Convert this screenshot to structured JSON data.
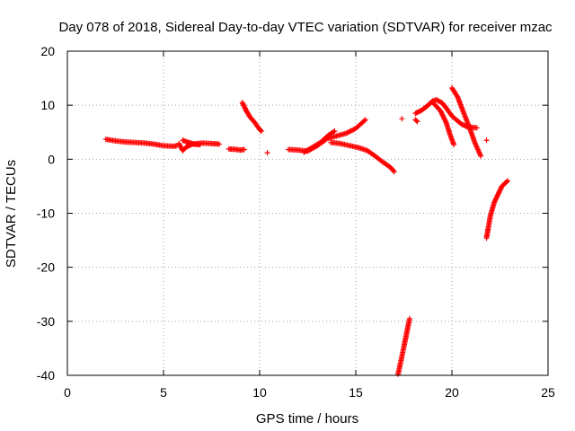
{
  "chart_data": {
    "type": "scatter",
    "title": "Day 078 of 2018, Sidereal Day-to-day VTEC variation (SDTVAR) for receiver mzac",
    "xlabel": "GPS time / hours",
    "ylabel": "SDTVAR / TECUs",
    "xlim": [
      0,
      25
    ],
    "ylim": [
      -40,
      20
    ],
    "xticks": [
      0,
      5,
      10,
      15,
      20,
      25
    ],
    "yticks": [
      -40,
      -30,
      -20,
      -10,
      0,
      10,
      20
    ],
    "xtick_labels": [
      "0",
      "5",
      "10",
      "15",
      "20",
      "25"
    ],
    "ytick_labels": [
      "-40",
      "-30",
      "-20",
      "-10",
      "0",
      "10",
      "20"
    ],
    "grid": true,
    "marker": "+",
    "color": "#ff0000",
    "segments": [
      {
        "points": [
          [
            2.0,
            3.7
          ],
          [
            2.5,
            3.4
          ],
          [
            3.0,
            3.2
          ],
          [
            3.5,
            3.1
          ],
          [
            4.0,
            3.0
          ],
          [
            4.5,
            2.8
          ],
          [
            5.0,
            2.5
          ],
          [
            5.5,
            2.4
          ],
          [
            5.7,
            2.5
          ]
        ]
      },
      {
        "points": [
          [
            5.8,
            2.9
          ],
          [
            6.0,
            1.6
          ],
          [
            6.2,
            2.3
          ],
          [
            6.5,
            2.8
          ],
          [
            7.0,
            3.0
          ],
          [
            7.5,
            2.9
          ],
          [
            7.9,
            2.8
          ]
        ]
      },
      {
        "points": [
          [
            6.0,
            3.5
          ],
          [
            6.3,
            3.1
          ],
          [
            6.6,
            2.8
          ],
          [
            6.9,
            2.7
          ]
        ]
      },
      {
        "points": [
          [
            8.4,
            1.9
          ],
          [
            8.8,
            1.8
          ],
          [
            9.0,
            1.7
          ],
          [
            9.2,
            1.8
          ]
        ]
      },
      {
        "points": [
          [
            9.1,
            10.5
          ],
          [
            9.3,
            9.0
          ],
          [
            9.5,
            7.8
          ],
          [
            9.7,
            7.0
          ],
          [
            10.0,
            5.5
          ],
          [
            10.1,
            5.2
          ]
        ]
      },
      {
        "points": [
          [
            10.4,
            1.2
          ]
        ]
      },
      {
        "points": [
          [
            11.5,
            1.8
          ],
          [
            12.0,
            1.7
          ],
          [
            12.5,
            1.5
          ],
          [
            13.0,
            2.5
          ],
          [
            13.5,
            3.8
          ],
          [
            14.0,
            4.3
          ],
          [
            14.5,
            4.8
          ],
          [
            15.0,
            5.7
          ],
          [
            15.5,
            7.3
          ]
        ]
      },
      {
        "points": [
          [
            12.3,
            1.3
          ],
          [
            12.7,
            2.1
          ],
          [
            13.2,
            3.2
          ],
          [
            13.6,
            4.5
          ],
          [
            13.9,
            5.2
          ]
        ]
      },
      {
        "points": [
          [
            13.7,
            3.1
          ],
          [
            14.2,
            2.9
          ],
          [
            14.7,
            2.5
          ],
          [
            15.2,
            2.1
          ],
          [
            15.6,
            1.6
          ],
          [
            16.0,
            0.6
          ],
          [
            16.4,
            -0.5
          ],
          [
            16.8,
            -1.5
          ],
          [
            17.0,
            -2.3
          ]
        ]
      },
      {
        "points": [
          [
            17.4,
            7.5
          ]
        ]
      },
      {
        "points": [
          [
            18.1,
            7.3
          ],
          [
            18.2,
            7.0
          ]
        ]
      },
      {
        "points": [
          [
            18.1,
            8.5
          ],
          [
            18.4,
            9.0
          ],
          [
            18.7,
            9.8
          ],
          [
            19.0,
            10.8
          ],
          [
            19.2,
            11.0
          ],
          [
            19.5,
            10.4
          ],
          [
            19.7,
            9.5
          ],
          [
            20.0,
            8.0
          ],
          [
            20.5,
            6.5
          ],
          [
            20.8,
            6.0
          ],
          [
            21.3,
            5.8
          ]
        ]
      },
      {
        "points": [
          [
            19.0,
            10.5
          ],
          [
            19.4,
            9.0
          ],
          [
            19.7,
            6.8
          ],
          [
            19.9,
            4.6
          ],
          [
            20.1,
            2.7
          ]
        ]
      },
      {
        "points": [
          [
            20.0,
            13.2
          ],
          [
            20.3,
            11.5
          ],
          [
            20.6,
            8.7
          ],
          [
            20.9,
            6.0
          ],
          [
            21.2,
            3.0
          ],
          [
            21.5,
            0.6
          ]
        ]
      },
      {
        "points": [
          [
            21.8,
            3.5
          ]
        ]
      },
      {
        "points": [
          [
            17.2,
            -39.8
          ],
          [
            17.4,
            -36.5
          ],
          [
            17.6,
            -33.0
          ],
          [
            17.8,
            -29.5
          ]
        ]
      },
      {
        "points": [
          [
            21.8,
            -14.6
          ],
          [
            21.9,
            -12.5
          ],
          [
            22.0,
            -10.5
          ],
          [
            22.2,
            -8.0
          ],
          [
            22.4,
            -6.5
          ],
          [
            22.6,
            -5.0
          ],
          [
            22.9,
            -4.0
          ]
        ]
      }
    ]
  }
}
